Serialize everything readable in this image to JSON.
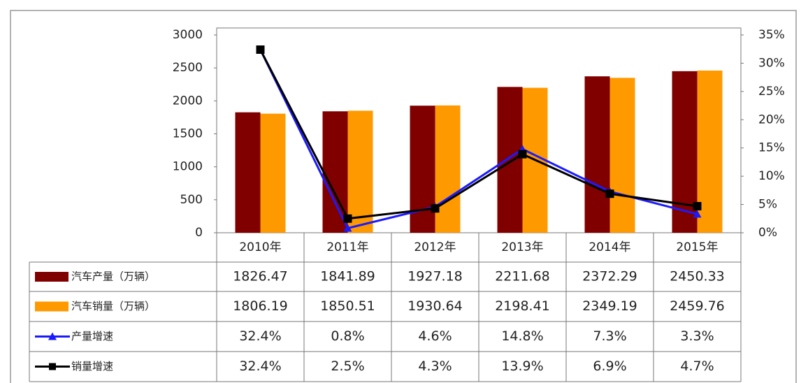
{
  "chart_data": {
    "type": "bar",
    "categories": [
      "2010年",
      "2011年",
      "2012年",
      "2013年",
      "2014年",
      "2015年"
    ],
    "series": [
      {
        "name": "汽车产量（万辆）",
        "color": "#800000",
        "values": [
          1826.47,
          1841.89,
          1927.18,
          2211.68,
          2372.29,
          2450.33
        ]
      },
      {
        "name": "汽车销量（万辆）",
        "color": "#ff9900",
        "values": [
          1806.19,
          1850.51,
          1930.64,
          2198.41,
          2349.19,
          2459.76
        ]
      },
      {
        "name": "产量增速",
        "color": "#1a1aff",
        "type": "line",
        "axis": "y2",
        "values": [
          32.4,
          0.8,
          4.6,
          14.8,
          7.3,
          3.3
        ],
        "value_labels": [
          "32.4%",
          "0.8%",
          "4.6%",
          "14.8%",
          "7.3%",
          "3.3%"
        ]
      },
      {
        "name": "销量增速",
        "color": "#000000",
        "type": "line",
        "axis": "y2",
        "values": [
          32.4,
          2.5,
          4.3,
          13.9,
          6.9,
          4.7
        ],
        "value_labels": [
          "32.4%",
          "2.5%",
          "4.3%",
          "13.9%",
          "6.9%",
          "4.7%"
        ]
      }
    ],
    "ylim": [
      0,
      3000
    ],
    "yticks": [
      0,
      500,
      1000,
      1500,
      2000,
      2500,
      3000
    ],
    "y2lim": [
      0,
      35
    ],
    "y2ticks": [
      {
        "value": 0,
        "label": "0%"
      },
      {
        "value": 5,
        "label": "5%"
      },
      {
        "value": 10,
        "label": "10%"
      },
      {
        "value": 15,
        "label": "15%"
      },
      {
        "value": 20,
        "label": "20%"
      },
      {
        "value": 25,
        "label": "25%"
      },
      {
        "value": 30,
        "label": "30%"
      },
      {
        "value": 35,
        "label": "35%"
      }
    ],
    "grid": false
  }
}
